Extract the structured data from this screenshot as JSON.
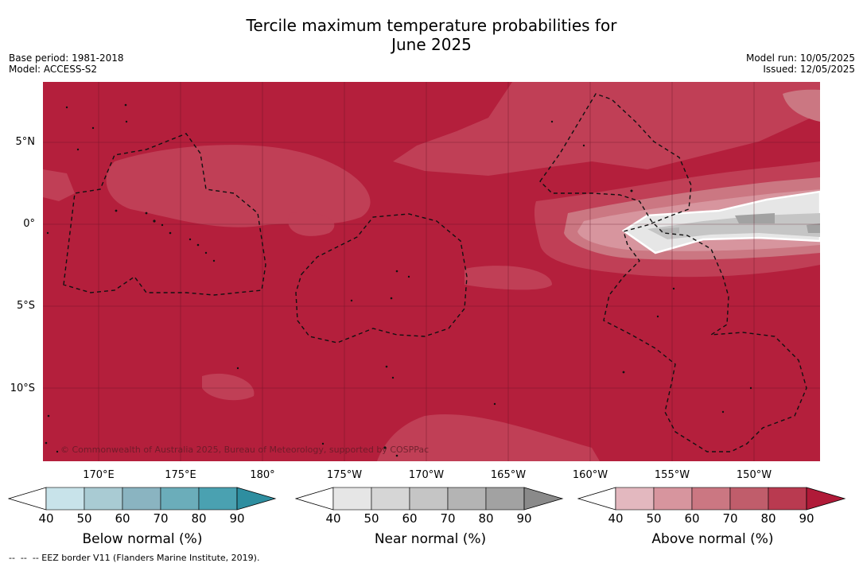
{
  "title_line1": "Tercile maximum temperature probabilities for",
  "title_line2": "June 2025",
  "meta": {
    "base_period": "Base period: 1981-2018",
    "model": "Model: ACCESS-S2",
    "model_run": "Model run: 10/05/2025",
    "issued": "Issued: 12/05/2025"
  },
  "map": {
    "lat_labels": [
      "5°N",
      "0°",
      "5°S",
      "10°S"
    ],
    "lon_labels": [
      "170°E",
      "175°E",
      "180°",
      "175°W",
      "170°W",
      "165°W",
      "160°W",
      "155°W",
      "150°W"
    ],
    "copyright": "© Commonwealth of Australia 2025, Bureau of Meteorology, supported by COSPPac",
    "background_category": "above normal",
    "background_color": "#b41f3c"
  },
  "colorbars": [
    {
      "title": "Below normal (%)",
      "ticks": [
        "40",
        "50",
        "60",
        "70",
        "80",
        "90"
      ],
      "colors": [
        "#c8e3ea",
        "#a9cbd3",
        "#8ab4c1",
        "#6badba",
        "#4aa1b1",
        "#2e8ea0"
      ]
    },
    {
      "title": "Near normal (%)",
      "ticks": [
        "40",
        "50",
        "60",
        "70",
        "80",
        "90"
      ],
      "colors": [
        "#e6e6e6",
        "#d6d6d6",
        "#c5c5c5",
        "#b4b4b4",
        "#a2a2a2",
        "#8a8a8a"
      ]
    },
    {
      "title": "Above normal (%)",
      "ticks": [
        "40",
        "50",
        "60",
        "70",
        "80",
        "90"
      ],
      "colors": [
        "#e3b8bf",
        "#d7959e",
        "#cb7782",
        "#c05d6b",
        "#b93a50",
        "#b01a38"
      ]
    }
  ],
  "footnote": "--  --  -- EEZ border V11 (Flanders Marine Institute, 2019)."
}
